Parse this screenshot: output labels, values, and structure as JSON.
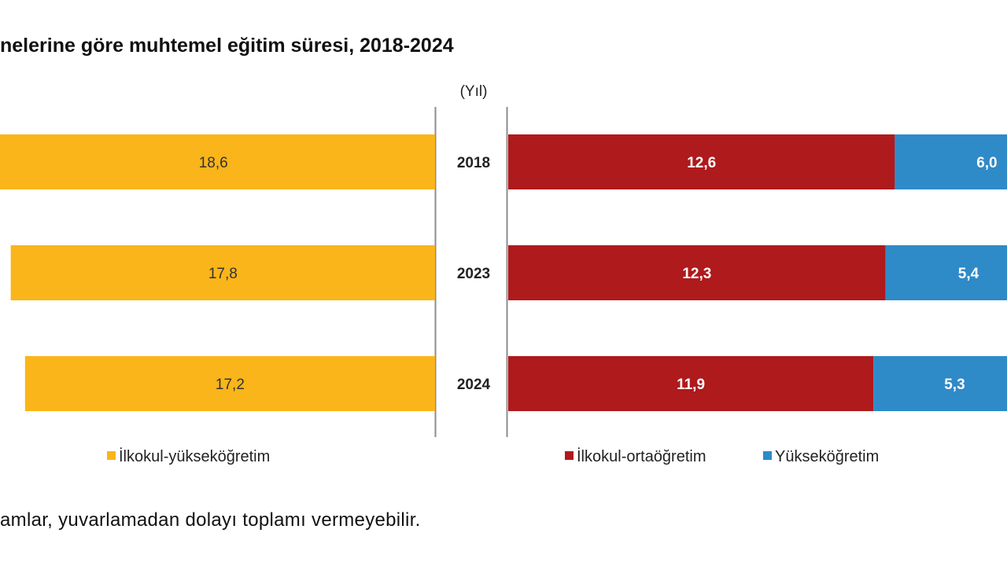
{
  "title": "nelerine göre muhtemel eğitim süresi, 2018-2024",
  "footnote": "amlar, yuvarlamadan dolayı toplamı vermeyebilir.",
  "chart_data": [
    {
      "type": "bar",
      "orientation": "horizontal",
      "categories": [
        "2018",
        "2023",
        "2024"
      ],
      "category_unit": "(Yıl)",
      "series": [
        {
          "name": "İlkokul-yükseköğretim",
          "color": "#F9B51A",
          "values": [
            18.6,
            17.8,
            17.2
          ]
        }
      ],
      "value_labels": [
        "18,6",
        "17,8",
        "17,2"
      ],
      "legend_position": "bottom",
      "grid": false
    },
    {
      "type": "bar",
      "orientation": "horizontal",
      "stacked": true,
      "categories": [
        "2018",
        "2023",
        "2024"
      ],
      "series": [
        {
          "name": "İlkokul-ortaöğretim",
          "color": "#AF1A1C",
          "values": [
            12.6,
            12.3,
            11.9
          ],
          "value_labels": [
            "12,6",
            "12,3",
            "11,9"
          ]
        },
        {
          "name": "Yükseköğretim",
          "color": "#2F8AC8",
          "values": [
            6.0,
            5.4,
            5.3
          ],
          "value_labels": [
            "6,0",
            "5,4",
            "5,3"
          ]
        }
      ],
      "legend_position": "bottom",
      "grid": false
    }
  ]
}
